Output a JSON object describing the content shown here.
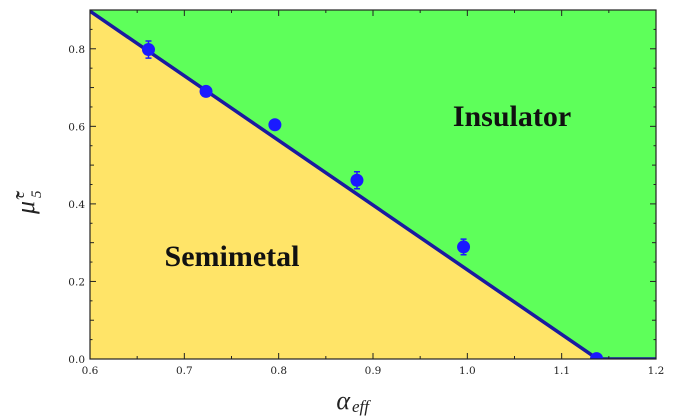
{
  "chart_data": {
    "type": "scatter",
    "x_label": {
      "symbol": "α",
      "subscript": "eff"
    },
    "y_label": {
      "symbol": "μ̃",
      "subscript": "5",
      "superscript": "c"
    },
    "xlim": [
      0.6,
      1.2
    ],
    "ylim": [
      0.0,
      0.9
    ],
    "x_ticks": [
      0.6,
      0.7,
      0.8,
      0.9,
      1.0,
      1.1,
      1.2
    ],
    "x_tick_labels": [
      "0.6",
      "0.7",
      "0.8",
      "0.9",
      "1.0",
      "1.1",
      "1.2"
    ],
    "y_ticks": [
      0.0,
      0.2,
      0.4,
      0.6,
      0.8
    ],
    "y_tick_labels": [
      "0.0",
      "0.2",
      "0.4",
      "0.6",
      "0.8"
    ],
    "regions": [
      {
        "label": "Insulator",
        "color": "#5eff5a",
        "side": "above-line"
      },
      {
        "label": "Semimetal",
        "color": "#ffe468",
        "side": "below-line"
      }
    ],
    "boundary_line": {
      "color": "#1a1aa0",
      "points": [
        {
          "x": 0.6,
          "y": 0.897
        },
        {
          "x": 1.138,
          "y": 0.0
        },
        {
          "x": 1.2,
          "y": 0.0
        }
      ]
    },
    "series": [
      {
        "marker_color": "#1a1aff",
        "points": [
          {
            "x": 0.662,
            "y": 0.798,
            "err": 0.022
          },
          {
            "x": 0.723,
            "y": 0.69,
            "err": 0.012
          },
          {
            "x": 0.796,
            "y": 0.604,
            "err": 0.008
          },
          {
            "x": 0.883,
            "y": 0.461,
            "err": 0.022
          },
          {
            "x": 0.996,
            "y": 0.289,
            "err": 0.02
          },
          {
            "x": 1.137,
            "y": 0.001,
            "err": 0.0
          }
        ]
      }
    ]
  }
}
